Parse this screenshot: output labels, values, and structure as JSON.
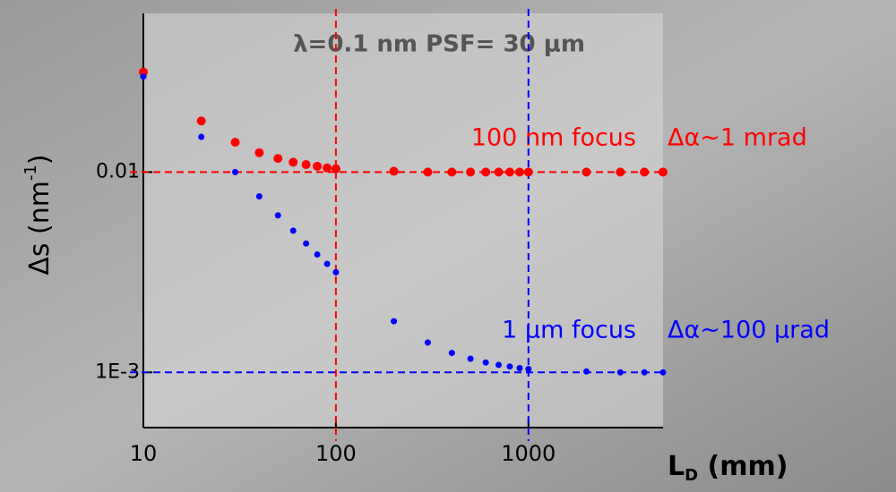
{
  "chart_data": {
    "type": "scatter",
    "title": "λ=0.1 nm PSF= 30 μm",
    "ylabel": "Δs (nm",
    "ylabel_sup": "-1",
    "ylabel_end": ")",
    "xlabel": "L",
    "xlabel_sub": "D",
    "xlabel_end": " (mm)",
    "log_x": true,
    "log_y": true,
    "xlim": [
      10,
      5000
    ],
    "ylim": [
      0.00053,
      0.062
    ],
    "xticks": [
      10,
      100,
      1000
    ],
    "yticks": [
      0.01,
      {
        "value": 0.001,
        "label": "1E-3"
      }
    ],
    "x": [
      10,
      20,
      30,
      40,
      50,
      60,
      70,
      80,
      90,
      100,
      200,
      300,
      400,
      500,
      600,
      700,
      800,
      900,
      1000,
      2000,
      3000,
      4000,
      5000
    ],
    "series": [
      {
        "name": "100 nm focus",
        "note": "Δα~1 mrad",
        "color": "#ff0000",
        "values": [
          0.0316,
          0.018,
          0.0141,
          0.0125,
          0.0117,
          0.0112,
          0.0109,
          0.0107,
          0.0105,
          0.0104,
          0.0101,
          0.01,
          0.01,
          0.01,
          0.01,
          0.01,
          0.01,
          0.01,
          0.01,
          0.01,
          0.01,
          0.01,
          0.01
        ]
      },
      {
        "name": "1 μm focus",
        "note": "Δα~100 μrad",
        "color": "#0000ff",
        "values": [
          0.03,
          0.015,
          0.01,
          0.00757,
          0.00608,
          0.0051,
          0.0044,
          0.00388,
          0.00348,
          0.00316,
          0.0018,
          0.00141,
          0.00125,
          0.00117,
          0.00112,
          0.00109,
          0.00107,
          0.00105,
          0.00104,
          0.00101,
          0.001,
          0.001,
          0.001
        ]
      }
    ],
    "hlines": [
      {
        "value": 0.01,
        "color": "#ff0000"
      },
      {
        "value": 0.001,
        "color": "#0000ff"
      }
    ],
    "vlines": [
      {
        "value": 100,
        "color": "#ff0000"
      },
      {
        "value": 1000,
        "color": "#0000ff"
      }
    ]
  }
}
